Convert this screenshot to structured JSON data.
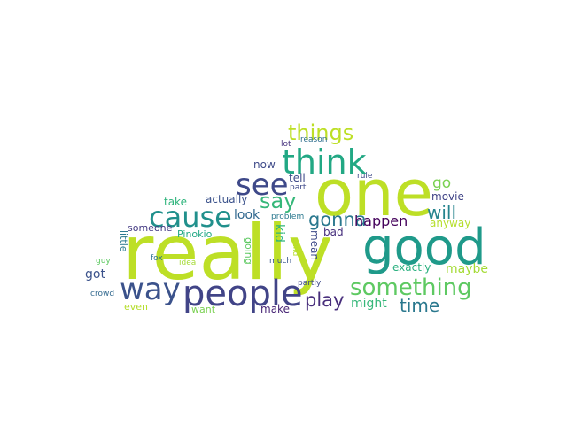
{
  "words": [
    {
      "text": "really",
      "color": "#bddf26"
    },
    {
      "text": "one",
      "color": "#bddf26"
    },
    {
      "text": "good",
      "color": "#1f9a8a"
    },
    {
      "text": "people",
      "color": "#414487"
    },
    {
      "text": "think",
      "color": "#22a884"
    },
    {
      "text": "way",
      "color": "#3b528b"
    },
    {
      "text": "cause",
      "color": "#21908c"
    },
    {
      "text": "see",
      "color": "#3e4989"
    },
    {
      "text": "something",
      "color": "#5ec962"
    },
    {
      "text": "things",
      "color": "#bddf26"
    },
    {
      "text": "say",
      "color": "#35b779"
    },
    {
      "text": "gonna",
      "color": "#2a788e"
    },
    {
      "text": "will",
      "color": "#25848e"
    },
    {
      "text": "play",
      "color": "#472d7b"
    },
    {
      "text": "time",
      "color": "#2a788e"
    },
    {
      "text": "happen",
      "color": "#44015b"
    },
    {
      "text": "go",
      "color": "#7ad151"
    },
    {
      "text": "maybe",
      "color": "#a5db36"
    },
    {
      "text": "might",
      "color": "#35b779"
    },
    {
      "text": "look",
      "color": "#31688e"
    },
    {
      "text": "actually",
      "color": "#3b528b"
    },
    {
      "text": "take",
      "color": "#2fb47c"
    },
    {
      "text": "someone",
      "color": "#443a83"
    },
    {
      "text": "Pinokio",
      "color": "#22a884"
    },
    {
      "text": "got",
      "color": "#3b528b"
    },
    {
      "text": "now",
      "color": "#3e4a89"
    },
    {
      "text": "tell",
      "color": "#3e4a89"
    },
    {
      "text": "movie",
      "color": "#414487"
    },
    {
      "text": "anyway",
      "color": "#b5de2b"
    },
    {
      "text": "exactly",
      "color": "#2ab07f"
    },
    {
      "text": "bad",
      "color": "#472f7d"
    },
    {
      "text": "mean",
      "color": "#3e4a89"
    },
    {
      "text": "kid",
      "color": "#2fb47c"
    },
    {
      "text": "little",
      "color": "#2a788e"
    },
    {
      "text": "going",
      "color": "#5ec962"
    },
    {
      "text": "make",
      "color": "#482576"
    },
    {
      "text": "want",
      "color": "#7ad151"
    },
    {
      "text": "even",
      "color": "#b5de2b"
    },
    {
      "text": "part",
      "color": "#3e4989"
    },
    {
      "text": "problem",
      "color": "#2a788e"
    },
    {
      "text": "much",
      "color": "#39568c"
    },
    {
      "text": "child",
      "color": "#b5de2b"
    },
    {
      "text": "partly",
      "color": "#3e4989"
    },
    {
      "text": "fox",
      "color": "#2c718e"
    },
    {
      "text": "idea",
      "color": "#a5db36"
    },
    {
      "text": "guy",
      "color": "#5ec962"
    },
    {
      "text": "crowd",
      "color": "#31688e"
    },
    {
      "text": "lot",
      "color": "#46327e"
    },
    {
      "text": "reason",
      "color": "#2e6e8e"
    },
    {
      "text": "rule",
      "color": "#3e4989"
    }
  ]
}
